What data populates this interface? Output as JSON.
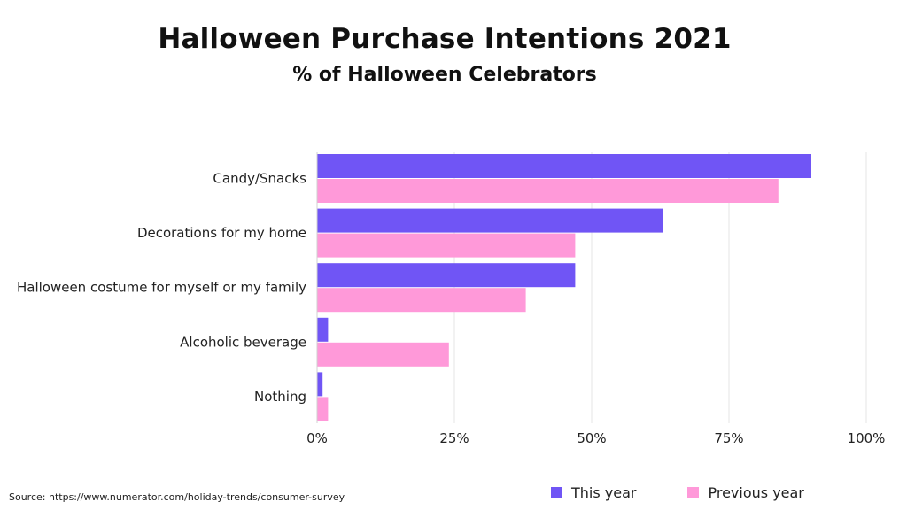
{
  "chart_data": {
    "type": "bar",
    "orientation": "horizontal",
    "title": "Halloween Purchase Intentions 2021",
    "subtitle": "% of Halloween Celebrators",
    "categories": [
      "Candy/Snacks",
      "Decorations for my home",
      "Halloween costume for myself or my family",
      "Alcoholic beverage",
      "Nothing"
    ],
    "series": [
      {
        "name": "This year",
        "color": "#7055F5",
        "values": [
          90,
          63,
          47,
          2,
          1
        ]
      },
      {
        "name": "Previous year",
        "color": "#FF99D9",
        "values": [
          84,
          47,
          38,
          24,
          2
        ]
      }
    ],
    "xlim": [
      0,
      100
    ],
    "xticks": [
      0,
      25,
      50,
      75,
      100
    ],
    "tick_labels": [
      "0%",
      "25%",
      "50%",
      "75%",
      "100%"
    ],
    "grid": true,
    "legend": "bottom-right"
  },
  "source": "Source: https://www.numerator.com/holiday-trends/consumer-survey"
}
